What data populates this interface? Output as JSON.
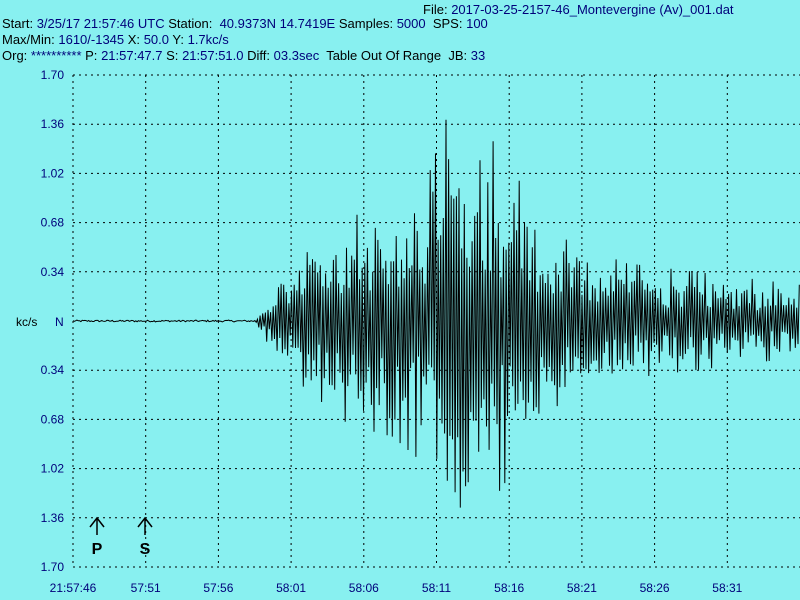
{
  "header": {
    "file_label": "File:",
    "file_name": "2017-03-25-2157-46_Montevergine (Av)_001.dat",
    "start_label": "Start:",
    "start_value": "3/25/17 21:57:46 UTC",
    "station_label": "Station:",
    "station_value": "40.9373N 14.7419E",
    "samples_label": "Samples:",
    "samples_value": "5000",
    "sps_label": "SPS:",
    "sps_value": "100",
    "maxmin_label": "Max/Min:",
    "maxmin_value": "1610/-1345",
    "x_label": "X:",
    "x_value": "50.0",
    "y_label": "Y:",
    "y_value": "1.7kc/s",
    "org_label": "Org:",
    "org_value": "**********",
    "p_label": "P:",
    "p_value": "21:57:47.7",
    "s_label": "S:",
    "s_value": "21:57:51.0",
    "diff_label": "Diff:",
    "diff_value": "03.3sec",
    "table_status": "Table Out Of Range",
    "jb_label": "JB:",
    "jb_value": "33"
  },
  "colors": {
    "background": "#88f0f0",
    "trace": "#000000",
    "grid": "#000000",
    "text_accent": "#00007a"
  },
  "chart_data": {
    "type": "line",
    "title": "",
    "ylabel": "kc/s",
    "zero_label": "N",
    "x_ticks": [
      "21:57:46",
      "57:51",
      "57:56",
      "58:01",
      "58:06",
      "58:11",
      "58:16",
      "58:21",
      "58:26",
      "58:31"
    ],
    "y_ticks": [
      "1.70",
      "1.36",
      "1.02",
      "0.68",
      "0.34",
      "0.34",
      "0.68",
      "1.02",
      "1.36",
      "1.70"
    ],
    "ylim": [
      -1.7,
      1.7
    ],
    "xlim_seconds": [
      0,
      50
    ],
    "grid": true,
    "phase_markers": [
      {
        "label": "P",
        "time": "21:57:47.7"
      },
      {
        "label": "S",
        "time": "21:57:51.0"
      }
    ],
    "trace_envelope": {
      "sample_rate": 100,
      "noise_until_seconds": 12.5,
      "noise_amplitude": 0.006,
      "peaks": [
        {
          "t": 14.5,
          "amp": 0.34
        },
        {
          "t": 19.0,
          "amp": 0.72
        },
        {
          "t": 22.0,
          "amp": 0.8
        },
        {
          "t": 24.5,
          "amp": 1.02
        },
        {
          "t": 26.3,
          "amp": 1.6
        },
        {
          "t": 27.5,
          "amp": 1.45
        },
        {
          "t": 30.5,
          "amp": 1.0
        },
        {
          "t": 33.0,
          "amp": 0.6
        },
        {
          "t": 38.0,
          "amp": 0.4
        },
        {
          "t": 50.0,
          "amp": 0.25
        }
      ]
    }
  }
}
